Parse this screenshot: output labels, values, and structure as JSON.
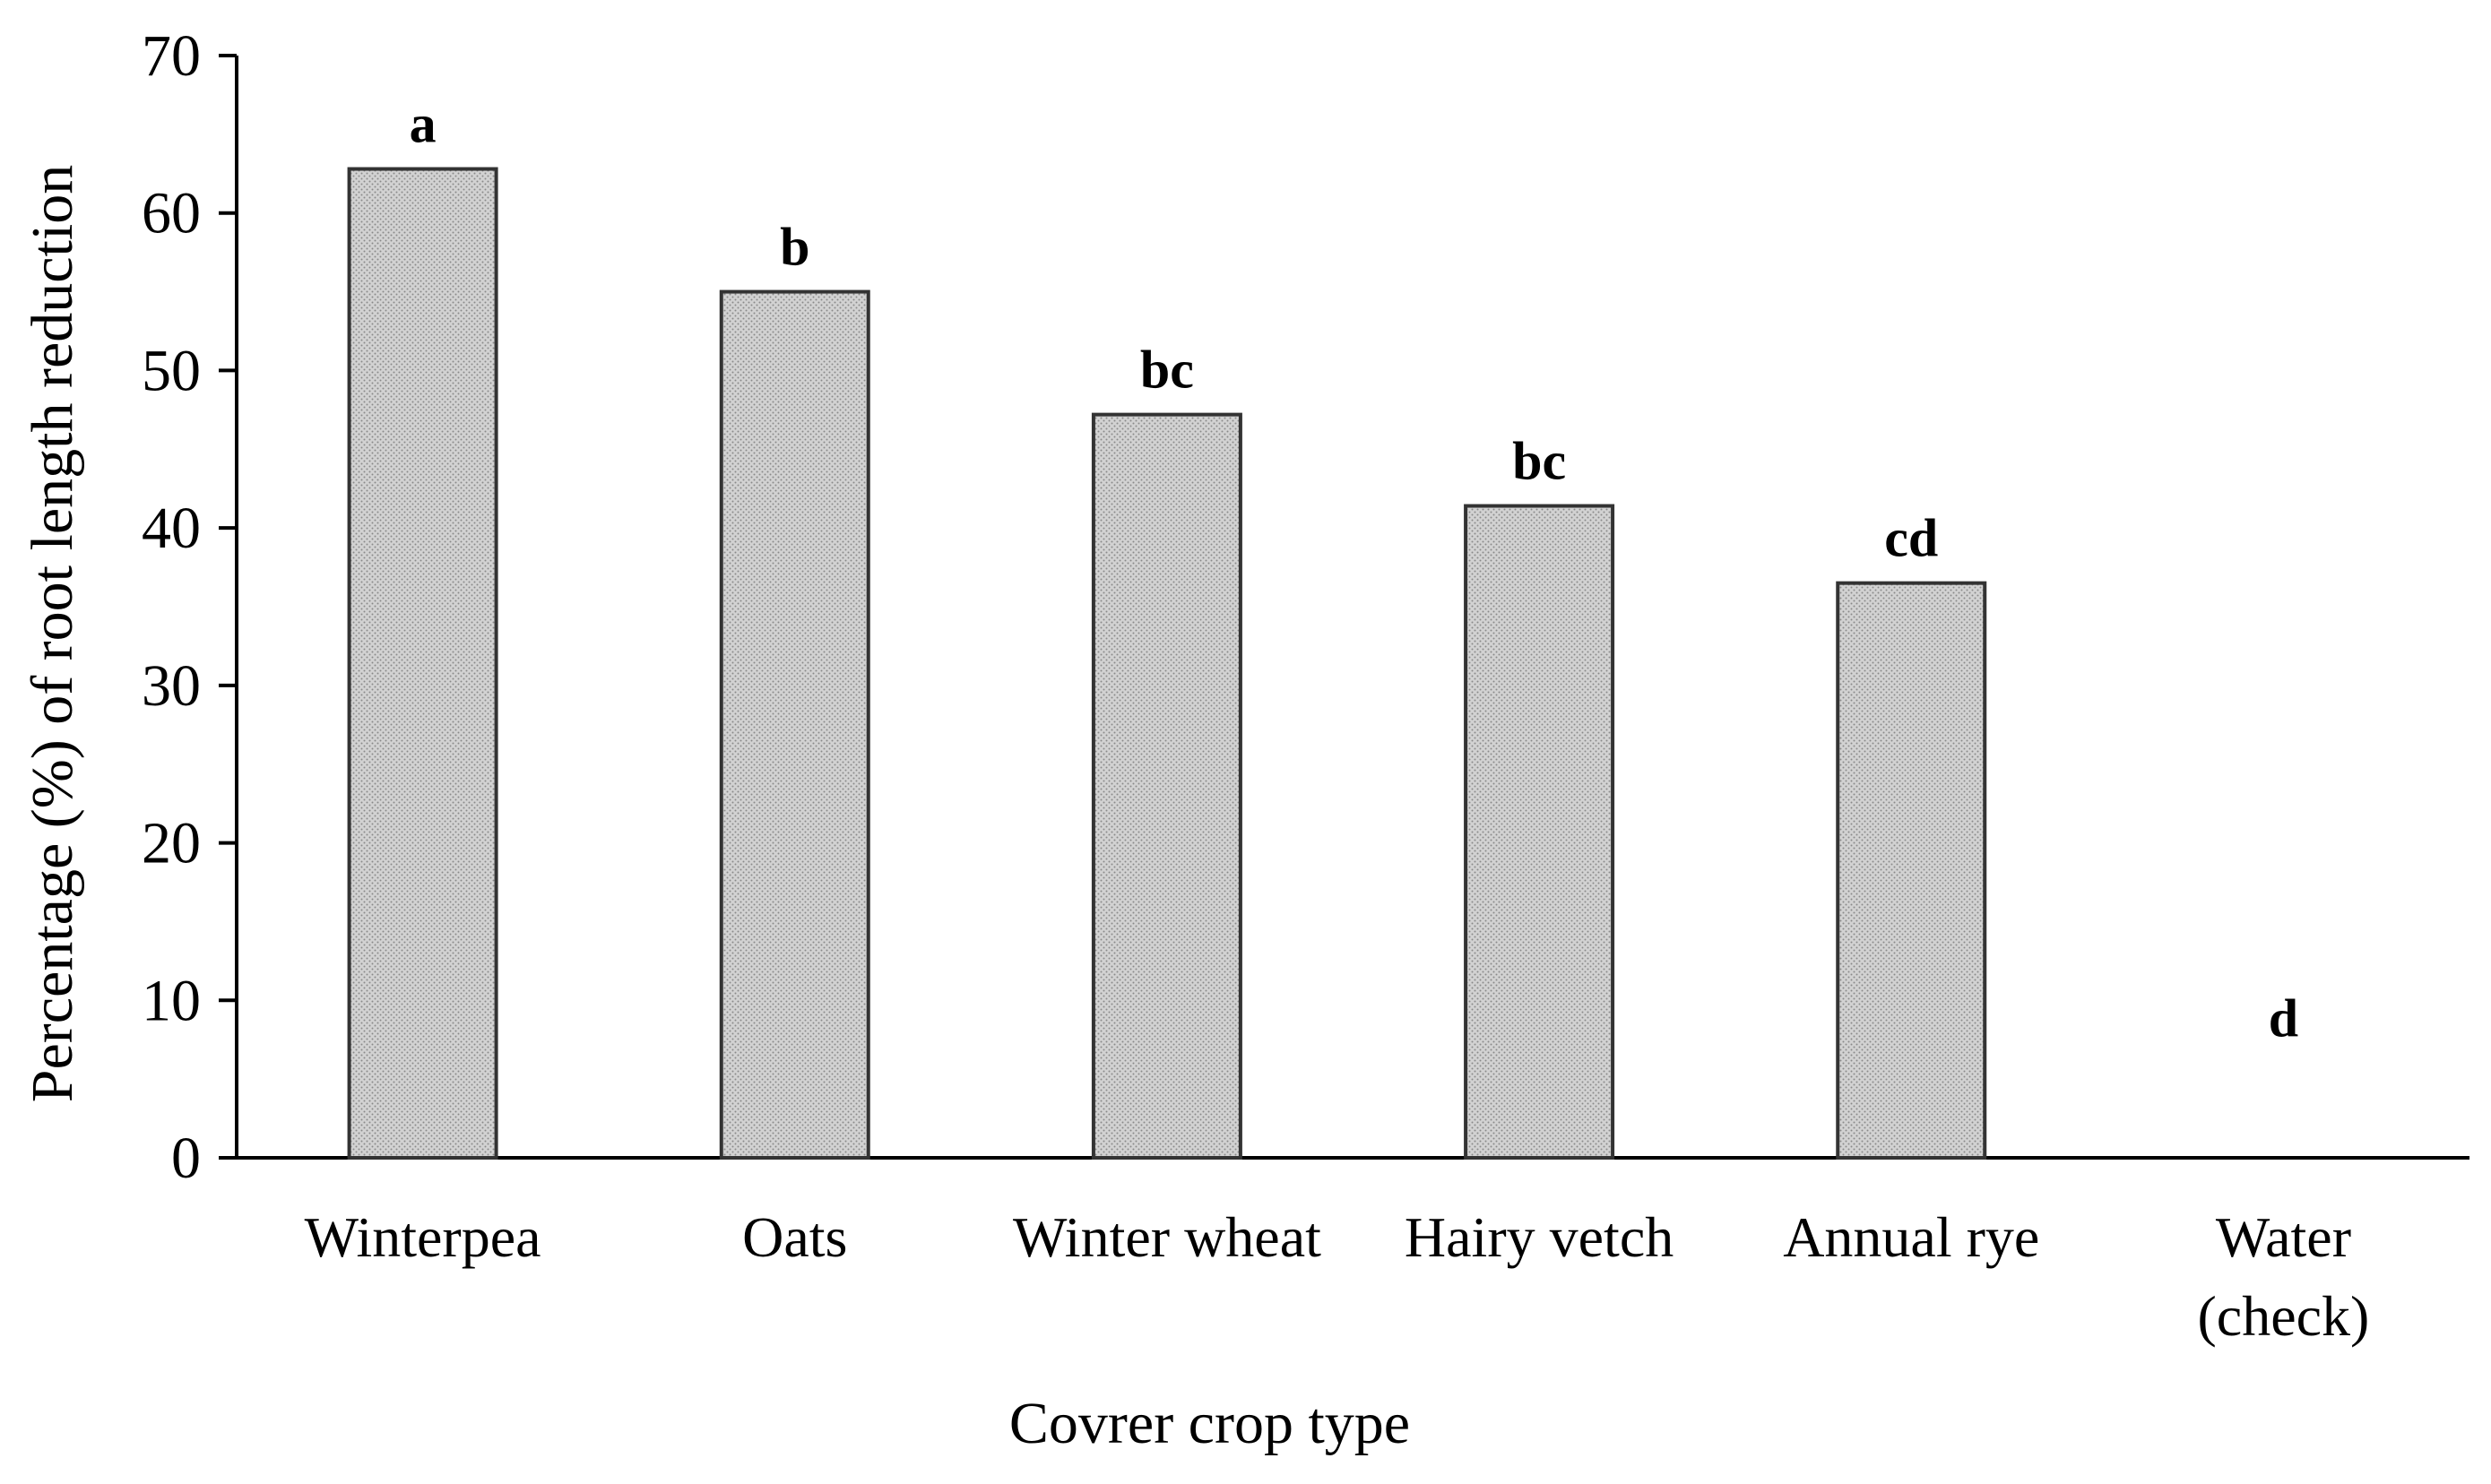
{
  "chart_data": {
    "type": "bar",
    "title": "",
    "xlabel": "Covrer crop type",
    "ylabel": "Percentage (%) of root length reduction",
    "ylim": [
      0,
      70
    ],
    "yticks": [
      "0",
      "10",
      "20",
      "30",
      "40",
      "50",
      "60",
      "70"
    ],
    "grid": false,
    "categories": [
      [
        "Winterpea"
      ],
      [
        "Oats"
      ],
      [
        "Winter wheat"
      ],
      [
        "Hairy vetch"
      ],
      [
        "Annual rye"
      ],
      [
        "Water",
        "(check)"
      ]
    ],
    "values": [
      62.8,
      55.0,
      47.2,
      41.4,
      36.5,
      0
    ],
    "significance_letters": [
      "a",
      "b",
      "bc",
      "bc",
      "cd",
      "d"
    ],
    "bar_fill": "#c8c8c8",
    "bar_stroke": "#333333",
    "axis_color": "#000000"
  }
}
